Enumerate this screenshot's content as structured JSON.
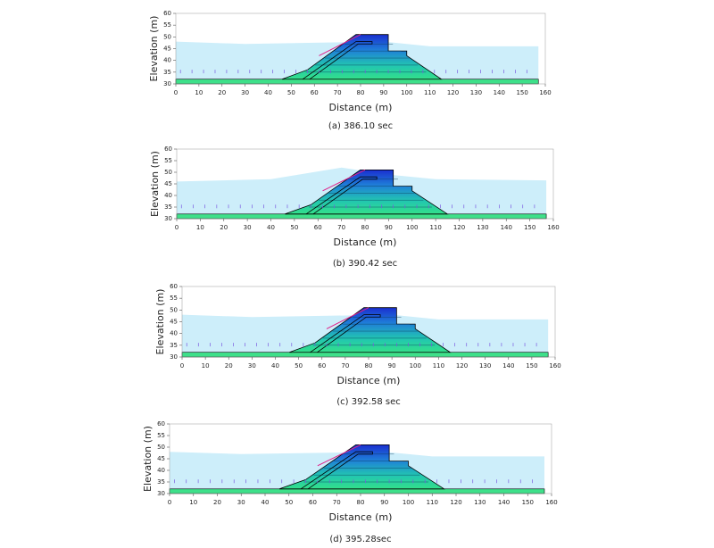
{
  "chart_data": [
    {
      "type": "contour",
      "xlabel": "Distance (m)",
      "ylabel": "Elevation (m)",
      "caption": "(a) 386.10 sec",
      "xlim": [
        0,
        160
      ],
      "ylim": [
        30,
        60
      ],
      "xticks": [
        0,
        10,
        20,
        30,
        40,
        50,
        60,
        70,
        80,
        90,
        100,
        110,
        120,
        130,
        140,
        150,
        160
      ],
      "yticks": [
        30,
        35,
        40,
        45,
        50,
        55,
        60
      ]
    },
    {
      "type": "contour",
      "xlabel": "Distance (m)",
      "ylabel": "Elevation (m)",
      "caption": "(b) 390.42 sec",
      "xlim": [
        0,
        160
      ],
      "ylim": [
        30,
        60
      ],
      "xticks": [
        0,
        10,
        20,
        30,
        40,
        50,
        60,
        70,
        80,
        90,
        100,
        110,
        120,
        130,
        140,
        150,
        160
      ],
      "yticks": [
        30,
        35,
        40,
        45,
        50,
        55,
        60
      ]
    },
    {
      "type": "contour",
      "xlabel": "Distance (m)",
      "ylabel": "Elevation (m)",
      "caption": "(c) 392.58 sec",
      "xlim": [
        0,
        160
      ],
      "ylim": [
        30,
        60
      ],
      "xticks": [
        0,
        10,
        20,
        30,
        40,
        50,
        60,
        70,
        80,
        90,
        100,
        110,
        120,
        130,
        140,
        150,
        160
      ],
      "yticks": [
        30,
        35,
        40,
        45,
        50,
        55,
        60
      ]
    },
    {
      "type": "contour",
      "xlabel": "Distance (m)",
      "ylabel": "Elevation (m)",
      "caption": "(d) 395.28sec",
      "xlim": [
        0,
        160
      ],
      "ylim": [
        30,
        60
      ],
      "xticks": [
        0,
        10,
        20,
        30,
        40,
        50,
        60,
        70,
        80,
        90,
        100,
        110,
        120,
        130,
        140,
        150,
        160
      ],
      "yticks": [
        30,
        35,
        40,
        45,
        50,
        55,
        60
      ]
    }
  ]
}
